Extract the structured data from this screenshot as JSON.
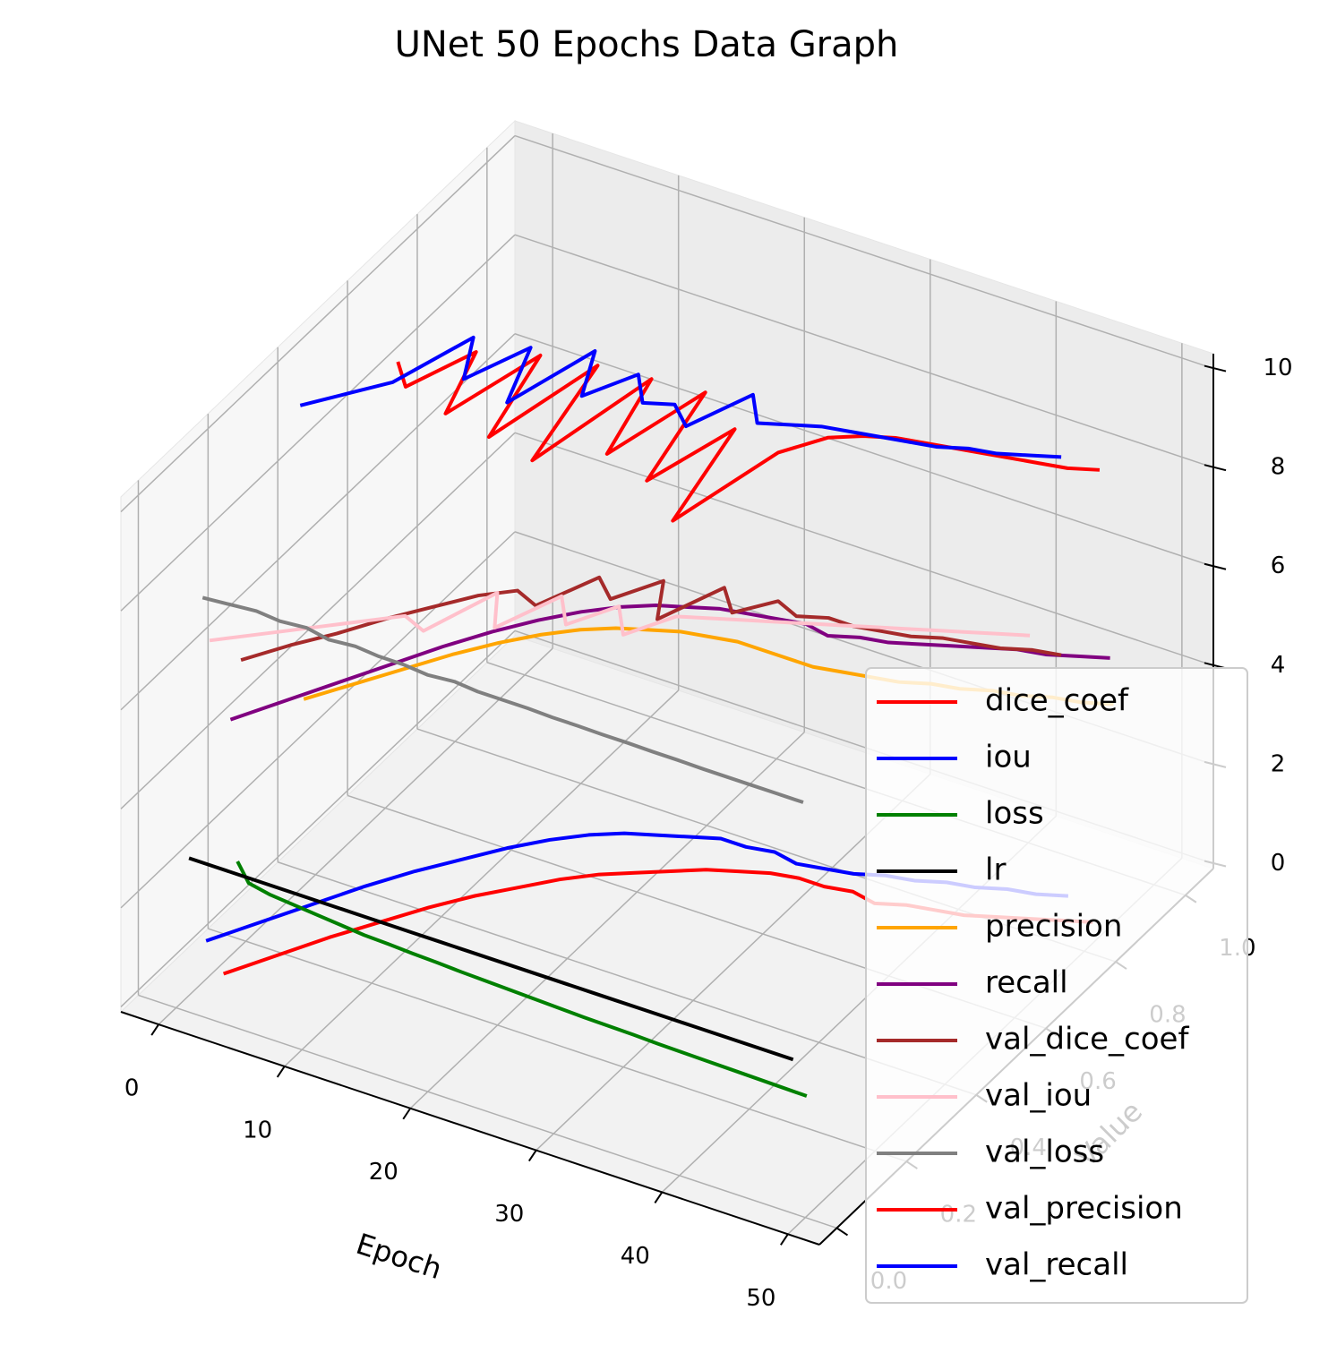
{
  "chart_data": {
    "type": "line3d",
    "title": "UNet 50 Epochs Data Graph",
    "x_label": "Epoch",
    "y_label": "Value",
    "x": [
      1,
      3,
      5,
      7,
      9,
      11,
      13,
      15,
      17,
      19,
      21,
      23,
      25,
      27,
      29,
      31,
      33,
      35,
      37,
      39,
      41,
      43,
      45,
      47,
      49
    ],
    "xlim": [
      -3,
      52.5
    ],
    "xticks": [
      0,
      10,
      20,
      30,
      40,
      50
    ],
    "ylim": [
      -0.05,
      1.08
    ],
    "yticks": [
      {
        "value": 0,
        "label": "0.0"
      },
      0.2,
      0.4,
      0.6,
      0.8,
      {
        "value": 1,
        "label": "1.0"
      }
    ],
    "zlim": [
      -0.1,
      10.3
    ],
    "zticks": [
      0,
      2,
      4,
      6,
      8,
      10
    ],
    "grid": true,
    "legend": "lower right",
    "series": [
      {
        "name": "dice_coef",
        "color": "#ff0000",
        "z": 0,
        "values": [
          0.1,
          0.18,
          0.26,
          0.33,
          0.4,
          0.46,
          0.51,
          0.56,
          0.6,
          0.63,
          0.66,
          0.69,
          0.71,
          0.73,
          0.74,
          0.74,
          0.75,
          0.74,
          0.76,
          0.77,
          0.78,
          0.8,
          0.82,
          0.84,
          0.86
        ]
      },
      {
        "name": "iou",
        "color": "#0000ff",
        "z": 1,
        "values": [
          0.05,
          0.13,
          0.21,
          0.29,
          0.36,
          0.42,
          0.48,
          0.53,
          0.57,
          0.6,
          0.62,
          0.64,
          0.66,
          0.66,
          0.67,
          0.66,
          0.67,
          0.68,
          0.7,
          0.71,
          0.73,
          0.74,
          0.76,
          0.77,
          0.79
        ]
      },
      {
        "name": "loss",
        "color": "#008000",
        "z": 2,
        "values": [
          0.14,
          0.1,
          0.09,
          0.085,
          0.08,
          0.075,
          0.07,
          0.068,
          0.065,
          0.063,
          0.06,
          0.058,
          0.056,
          0.054,
          0.052,
          0.05,
          0.049,
          0.048,
          0.046,
          0.045,
          0.044,
          0.043,
          0.042,
          0.041,
          0.04
        ]
      },
      {
        "name": "lr",
        "color": "#000000",
        "z": 3,
        "values": [
          0.001,
          0.001,
          0.001,
          0.001,
          0.001,
          0.001,
          0.001,
          0.001,
          0.001,
          0.001,
          0.001,
          0.001,
          0.001,
          0.001,
          0.001,
          0.001,
          0.001,
          0.001,
          0.001,
          0.001,
          0.001,
          0.001,
          0.001,
          0.001,
          0.001
        ]
      },
      {
        "name": "precision",
        "color": "#ffa500",
        "z": 4,
        "values": [
          0.33,
          0.4,
          0.47,
          0.54,
          0.6,
          0.65,
          0.69,
          0.72,
          0.74,
          0.76,
          0.77,
          0.78,
          0.78,
          0.78,
          0.78,
          0.79,
          0.8,
          0.81,
          0.83,
          0.84,
          0.86,
          0.87,
          0.89,
          0.9,
          0.92
        ]
      },
      {
        "name": "recall",
        "color": "#800080",
        "z": 5,
        "values": [
          0.12,
          0.2,
          0.28,
          0.36,
          0.44,
          0.51,
          0.57,
          0.62,
          0.66,
          0.69,
          0.71,
          0.73,
          0.74,
          0.75,
          0.76,
          0.75,
          0.77,
          0.78,
          0.8,
          0.82,
          0.84,
          0.86,
          0.87,
          0.89,
          0.91
        ]
      },
      {
        "name": "val_dice_coef",
        "color": "#a52a2a",
        "z": 6,
        "values": [
          0.15,
          0.22,
          0.28,
          0.35,
          0.41,
          0.47,
          0.51,
          0.49,
          0.6,
          0.56,
          0.64,
          0.55,
          0.67,
          0.62,
          0.68,
          0.66,
          0.68,
          0.68,
          0.69,
          0.7,
          0.72,
          0.73,
          0.74,
          0.76,
          0.77
        ]
      },
      {
        "name": "val_iou",
        "color": "#ffc0cb",
        "z": 7,
        "values": [
          0.06,
          0.1,
          0.14,
          0.18,
          0.22,
          0.26,
          0.24,
          0.38,
          0.3,
          0.42,
          0.36,
          0.44,
          0.38,
          0.46,
          0.48,
          0.5,
          0.52,
          0.54,
          0.56,
          0.58,
          0.6,
          0.62,
          0.64,
          0.66,
          0.68
        ]
      },
      {
        "name": "val_loss",
        "color": "#808080",
        "z": 8,
        "values": [
          0.04,
          0.045,
          0.05,
          0.045,
          0.05,
          0.04,
          0.045,
          0.04,
          0.04,
          0.035,
          0.04,
          0.035,
          0.035,
          0.035,
          0.033,
          0.033,
          0.032,
          0.032,
          0.031,
          0.031,
          0.03,
          0.03,
          0.03,
          0.03,
          0.03
        ]
      },
      {
        "name": "val_precision",
        "color": "#ff0000",
        "z": 9,
        "values": [
          0.6,
          0.55,
          0.68,
          0.52,
          0.72,
          0.5,
          0.74,
          0.48,
          0.75,
          0.55,
          0.76,
          0.52,
          0.7,
          0.45,
          0.68,
          0.75,
          0.78,
          0.8,
          0.81,
          0.82,
          0.83,
          0.84,
          0.85,
          0.86,
          0.88
        ]
      },
      {
        "name": "val_recall",
        "color": "#0000ff",
        "z": 10,
        "values": [
          0.32,
          0.38,
          0.44,
          0.6,
          0.5,
          0.62,
          0.48,
          0.66,
          0.55,
          0.64,
          0.58,
          0.6,
          0.56,
          0.68,
          0.62,
          0.64,
          0.66,
          0.67,
          0.68,
          0.69,
          0.7,
          0.72,
          0.73,
          0.75,
          0.77
        ]
      }
    ]
  }
}
